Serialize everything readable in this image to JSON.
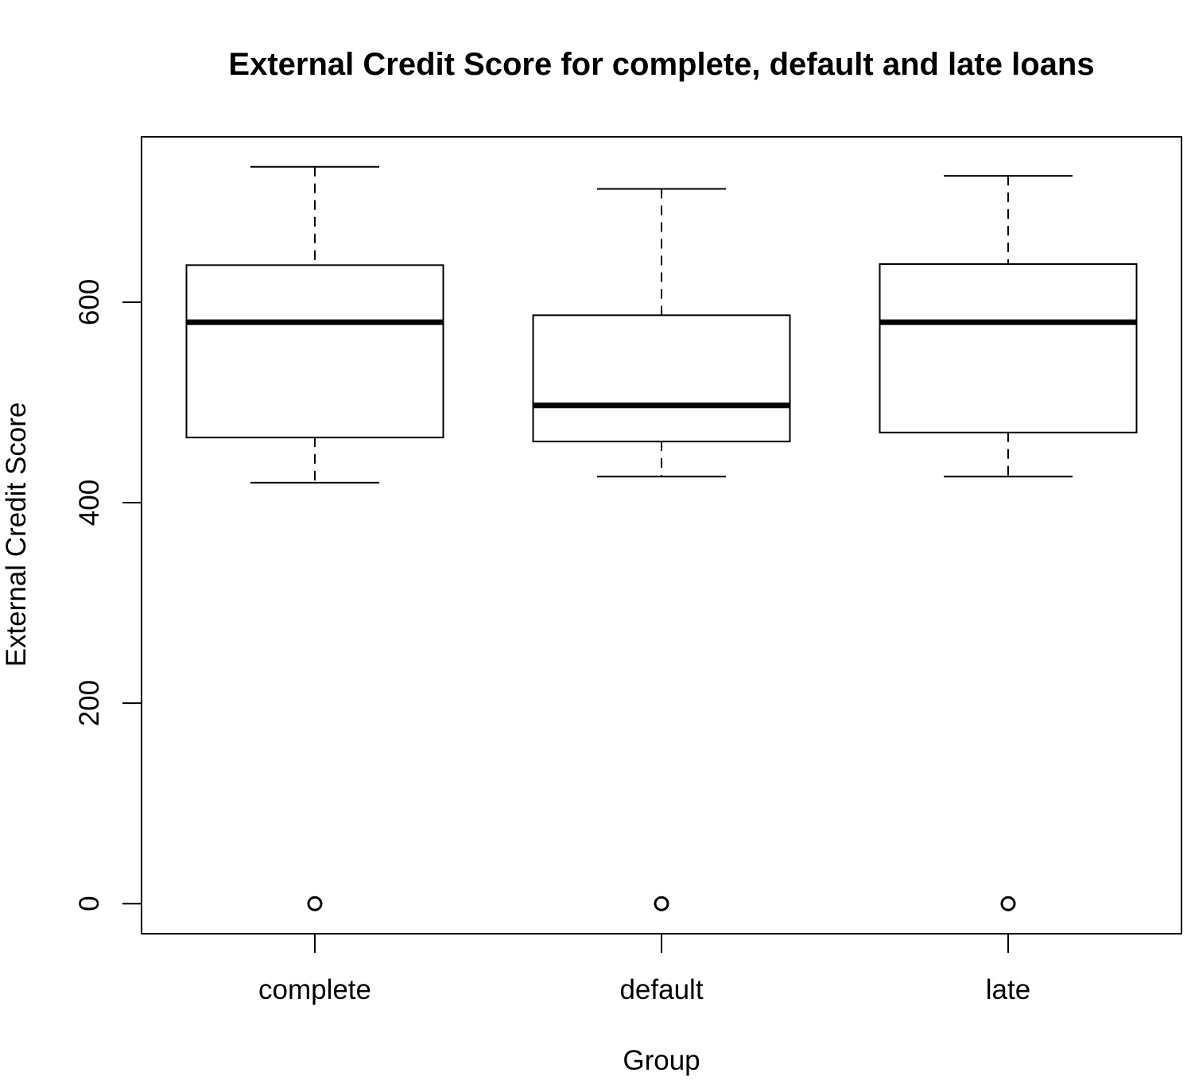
{
  "chart_data": {
    "type": "boxplot",
    "title": "External Credit Score for complete, default and late loans",
    "xlabel": "Group",
    "ylabel": "External Credit Score",
    "ylim": [
      -30,
      765
    ],
    "yticks": [
      0,
      200,
      400,
      600
    ],
    "categories": [
      "complete",
      "default",
      "late"
    ],
    "boxes": [
      {
        "category": "complete",
        "min": 420,
        "q1": 465,
        "median": 580,
        "q3": 637,
        "max": 735,
        "outliers": [
          0
        ]
      },
      {
        "category": "default",
        "min": 426,
        "q1": 461,
        "median": 497,
        "q3": 587,
        "max": 713,
        "outliers": [
          0
        ]
      },
      {
        "category": "late",
        "min": 426,
        "q1": 470,
        "median": 580,
        "q3": 638,
        "max": 726,
        "outliers": [
          0
        ]
      }
    ],
    "grid": false,
    "legend": "none"
  }
}
